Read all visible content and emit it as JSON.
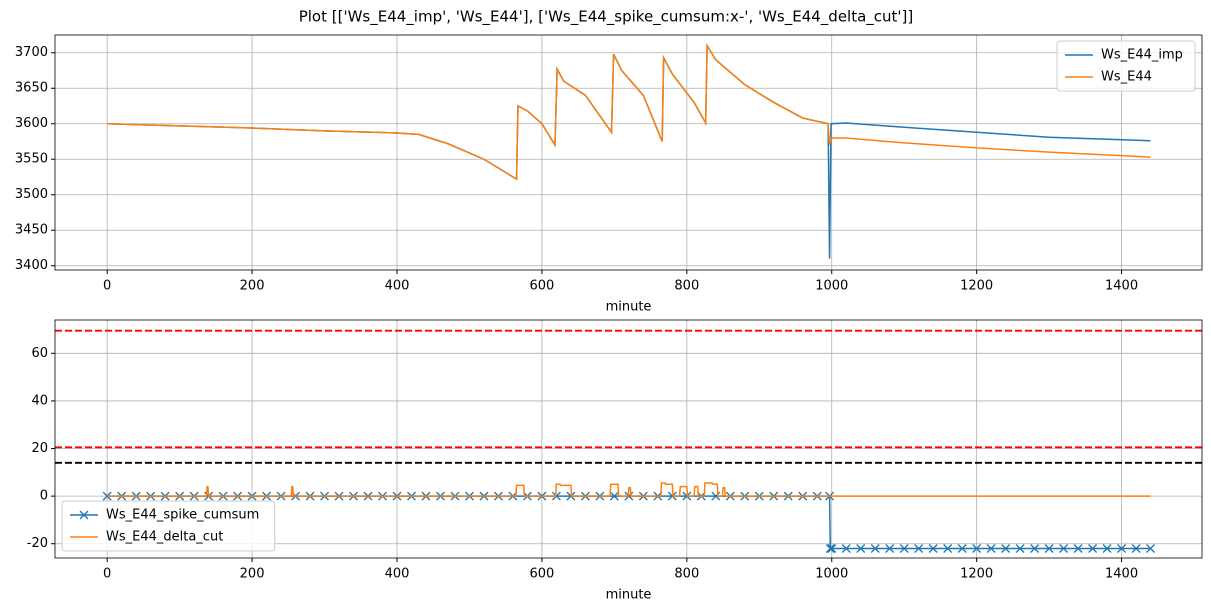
{
  "title": "Plot [['Ws_E44_imp', 'Ws_E44'], ['Ws_E44_spike_cumsum:x-', 'Ws_E44_delta_cut']]",
  "chart_data": [
    {
      "type": "line",
      "x_label": "minute",
      "x": [
        0,
        100,
        200,
        300,
        400,
        430,
        470,
        520,
        565,
        567,
        580,
        600,
        618,
        621,
        630,
        660,
        696,
        699,
        710,
        740,
        766,
        768,
        780,
        810,
        826,
        828,
        840,
        880,
        920,
        960,
        995,
        997,
        999,
        1020,
        1100,
        1200,
        1300,
        1440
      ],
      "series": [
        {
          "name": "Ws_E44_imp",
          "color": "#1f77b4",
          "values": [
            3600,
            3597,
            3594,
            3590,
            3587,
            3585,
            3572,
            3550,
            3522,
            3625,
            3618,
            3600,
            3570,
            3677,
            3660,
            3640,
            3588,
            3698,
            3675,
            3640,
            3575,
            3693,
            3670,
            3630,
            3601,
            3710,
            3690,
            3655,
            3630,
            3608,
            3600,
            3410,
            3600,
            3601,
            3595,
            3588,
            3581,
            3576
          ]
        },
        {
          "name": "Ws_E44",
          "color": "#ff7f0e",
          "values": [
            3600,
            3597,
            3594,
            3590,
            3587,
            3585,
            3572,
            3550,
            3522,
            3625,
            3618,
            3600,
            3570,
            3677,
            3660,
            3640,
            3588,
            3698,
            3675,
            3640,
            3575,
            3693,
            3670,
            3630,
            3601,
            3710,
            3690,
            3655,
            3630,
            3608,
            3600,
            3570,
            3580,
            3580,
            3573,
            3566,
            3560,
            3553
          ]
        }
      ],
      "xlim": [
        -72,
        1511
      ],
      "ylim": [
        3394,
        3725
      ],
      "xticks": [
        0,
        200,
        400,
        600,
        800,
        1000,
        1200,
        1400
      ],
      "yticks": [
        3400,
        3450,
        3500,
        3550,
        3600,
        3650,
        3700
      ],
      "grid": true,
      "legend": "upper-right"
    },
    {
      "type": "line",
      "x_label": "minute",
      "series": [
        {
          "name": "Ws_E44_spike_cumsum",
          "color": "#1f77b4",
          "marker": "x",
          "x": [
            0,
            20,
            40,
            60,
            80,
            100,
            120,
            140,
            160,
            180,
            200,
            220,
            240,
            260,
            280,
            300,
            320,
            340,
            360,
            380,
            400,
            420,
            440,
            460,
            480,
            500,
            520,
            540,
            560,
            580,
            600,
            620,
            640,
            660,
            680,
            700,
            720,
            740,
            760,
            780,
            800,
            820,
            840,
            860,
            880,
            900,
            920,
            940,
            960,
            980,
            997,
            998,
            1000,
            1020,
            1040,
            1060,
            1080,
            1100,
            1120,
            1140,
            1160,
            1180,
            1200,
            1220,
            1240,
            1260,
            1280,
            1300,
            1320,
            1340,
            1360,
            1380,
            1400,
            1420,
            1440
          ],
          "values": [
            0,
            0,
            0,
            0,
            0,
            0,
            0,
            0,
            0,
            0,
            0,
            0,
            0,
            0,
            0,
            0,
            0,
            0,
            0,
            0,
            0,
            0,
            0,
            0,
            0,
            0,
            0,
            0,
            0,
            0,
            0,
            0,
            0,
            0,
            0,
            0,
            0,
            0,
            0,
            0,
            0,
            0,
            0,
            0,
            0,
            0,
            0,
            0,
            0,
            0,
            0,
            -22,
            -22,
            -22,
            -22,
            -22,
            -22,
            -22,
            -22,
            -22,
            -22,
            -22,
            -22,
            -22,
            -22,
            -22,
            -22,
            -22,
            -22,
            -22,
            -22,
            -22,
            -22,
            -22,
            -22
          ]
        },
        {
          "name": "Ws_E44_delta_cut",
          "color": "#ff7f0e",
          "x": [
            0,
            137,
            138,
            139,
            140,
            254,
            255,
            256,
            257,
            564,
            565,
            575,
            576,
            619,
            620,
            625,
            626,
            640,
            641,
            694,
            695,
            705,
            706,
            719,
            720,
            722,
            723,
            764,
            765,
            770,
            771,
            780,
            781,
            790,
            791,
            800,
            801,
            810,
            811,
            815,
            816,
            824,
            825,
            835,
            836,
            842,
            843,
            849,
            850,
            852,
            853,
            1440
          ],
          "values": [
            0,
            0,
            4,
            4,
            0,
            0,
            4,
            4,
            0,
            0,
            4.5,
            4.5,
            0,
            0,
            5,
            5,
            4.5,
            4.5,
            0,
            0,
            5,
            5,
            0,
            0,
            3.5,
            3.5,
            0,
            0,
            5.5,
            5.5,
            5,
            5,
            0,
            0,
            4,
            4,
            0,
            0,
            4,
            4,
            0,
            0,
            5.5,
            5.5,
            5,
            5,
            0,
            0,
            3.5,
            3.5,
            0,
            0
          ]
        }
      ],
      "hlines": [
        {
          "value": 69.5,
          "color": "#ff0000",
          "style": "dashed"
        },
        {
          "value": 20.5,
          "color": "#ff0000",
          "style": "dashed"
        },
        {
          "value": 14,
          "color": "#000000",
          "style": "dashed"
        }
      ],
      "xlim": [
        -72,
        1511
      ],
      "ylim": [
        -26,
        74
      ],
      "xticks": [
        0,
        200,
        400,
        600,
        800,
        1000,
        1200,
        1400
      ],
      "yticks": [
        -20,
        0,
        20,
        40,
        60
      ],
      "grid": true,
      "legend": "lower-left"
    }
  ]
}
